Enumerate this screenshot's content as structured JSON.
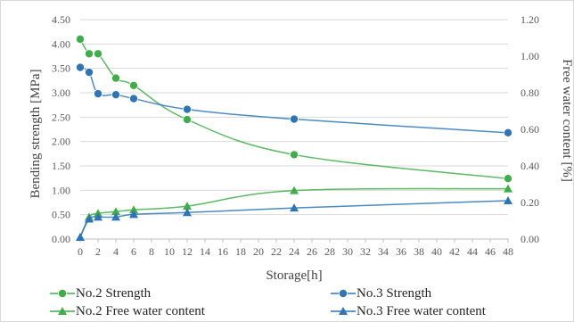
{
  "chart_data": {
    "type": "line",
    "title": "",
    "xlabel": "Storage[h]",
    "ylabel": "Bending strength [MPa]",
    "y2label": "Free water content [%]",
    "xlim": [
      0,
      48
    ],
    "ylim": [
      0,
      4.5
    ],
    "y2lim": [
      0,
      1.2
    ],
    "x_ticks": [
      "0",
      "2",
      "4",
      "6",
      "8",
      "10",
      "12",
      "14",
      "16",
      "18",
      "20",
      "22",
      "24",
      "26",
      "28",
      "30",
      "32",
      "34",
      "36",
      "38",
      "40",
      "42",
      "44",
      "46",
      "48"
    ],
    "y_ticks": [
      "0.00",
      "0.50",
      "1.00",
      "1.50",
      "2.00",
      "2.50",
      "3.00",
      "3.50",
      "4.00",
      "4.50"
    ],
    "y2_ticks": [
      "0.00",
      "0.20",
      "0.40",
      "0.60",
      "0.80",
      "1.00",
      "1.20"
    ],
    "grid": "horizontal",
    "legend_position": "bottom",
    "series": [
      {
        "name": "No.2 Strength",
        "axis": "left",
        "marker": "circle",
        "color": "#3fae49",
        "x": [
          0,
          1,
          2,
          4,
          6,
          12,
          24,
          48
        ],
        "y": [
          4.1,
          3.8,
          3.8,
          3.3,
          3.15,
          2.45,
          1.73,
          1.24
        ]
      },
      {
        "name": "No.3 Strength",
        "axis": "left",
        "marker": "circle",
        "color": "#2e75b6",
        "x": [
          0,
          1,
          2,
          4,
          6,
          12,
          24,
          48
        ],
        "y": [
          3.52,
          3.42,
          2.98,
          2.96,
          2.88,
          2.66,
          2.46,
          2.18
        ]
      },
      {
        "name": "No.2 Free water content",
        "axis": "right",
        "marker": "triangle",
        "color": "#3fae49",
        "x": [
          0,
          1,
          2,
          4,
          6,
          12,
          24,
          48
        ],
        "y": [
          0.01,
          0.12,
          0.14,
          0.15,
          0.16,
          0.18,
          0.265,
          0.275
        ]
      },
      {
        "name": "No.3 Free water content",
        "axis": "right",
        "marker": "triangle",
        "color": "#2e75b6",
        "x": [
          0,
          1,
          2,
          4,
          6,
          12,
          24,
          48
        ],
        "y": [
          0.01,
          0.11,
          0.12,
          0.12,
          0.135,
          0.145,
          0.17,
          0.21
        ]
      }
    ]
  }
}
